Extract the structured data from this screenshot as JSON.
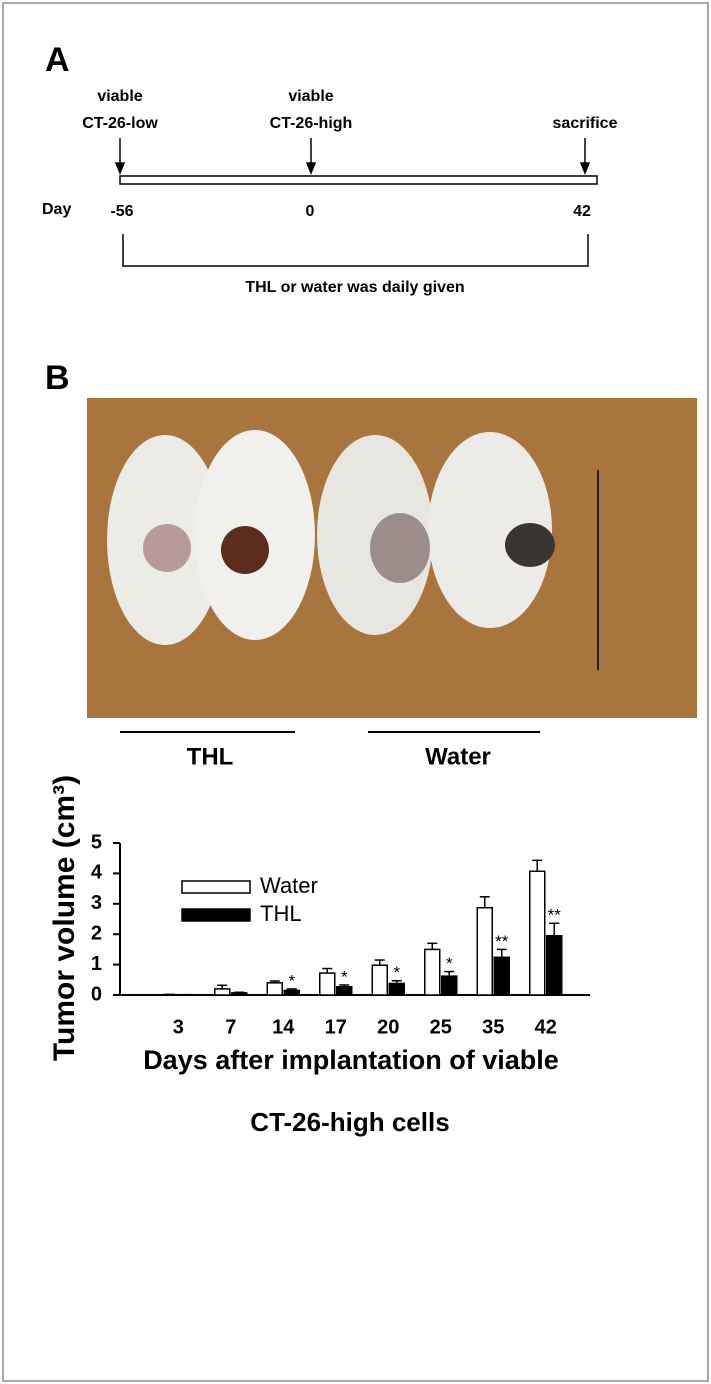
{
  "panel_a": {
    "label": "A",
    "events": [
      [
        "viable",
        "CT-26-low"
      ],
      [
        "viable",
        "CT-26-high"
      ],
      [
        "sacrifice"
      ]
    ],
    "day_label": "Day",
    "days": [
      -56,
      0,
      42
    ],
    "treatment": "THL or water was daily given"
  },
  "panel_b": {
    "label": "B",
    "groups": [
      "THL",
      "Water"
    ]
  },
  "chart_data": {
    "type": "bar",
    "ylabel": "Tumor volume (cm³)",
    "xlabel": [
      "Days after implantation of viable",
      "CT-26-high cells"
    ],
    "categories": [
      "3",
      "7",
      "14",
      "17",
      "20",
      "25",
      "35",
      "42"
    ],
    "series": [
      {
        "name": "Water",
        "color": "#ffffff",
        "values": [
          0.01,
          0.2,
          0.4,
          0.72,
          0.98,
          1.5,
          2.87,
          4.07
        ],
        "errors": [
          0.01,
          0.12,
          0.06,
          0.15,
          0.17,
          0.2,
          0.36,
          0.36
        ]
      },
      {
        "name": "THL",
        "color": "#000000",
        "values": [
          0.01,
          0.07,
          0.15,
          0.27,
          0.38,
          0.62,
          1.24,
          1.95
        ],
        "errors": [
          0,
          0.02,
          0.05,
          0.06,
          0.09,
          0.15,
          0.26,
          0.41
        ],
        "significance": [
          null,
          null,
          "*",
          "*",
          "*",
          "*",
          "**",
          "**"
        ]
      }
    ],
    "ylim": [
      0,
      5
    ],
    "yticks": [
      0,
      1,
      2,
      3,
      4,
      5
    ],
    "grid": false,
    "legend": "top-left"
  }
}
